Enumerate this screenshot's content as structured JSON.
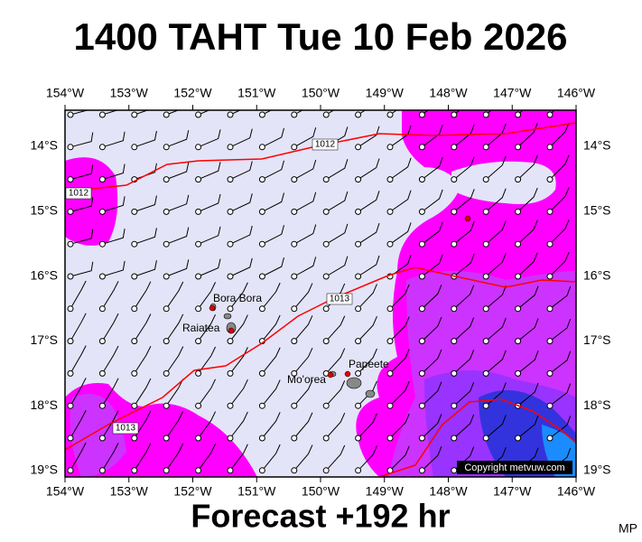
{
  "header": {
    "title": "1400 TAHT Tue 10 Feb 2026"
  },
  "map": {
    "lon_labels": [
      "154°W",
      "153°W",
      "152°W",
      "151°W",
      "150°W",
      "149°W",
      "148°W",
      "147°W",
      "146°W"
    ],
    "lat_labels": [
      "14°S",
      "15°S",
      "16°S",
      "17°S",
      "18°S",
      "19°S"
    ],
    "places": [
      {
        "name": "Bora Bora"
      },
      {
        "name": "Raiatea"
      },
      {
        "name": "Mo'orea"
      },
      {
        "name": "Papeete"
      }
    ],
    "isobar_labels": [
      "1012",
      "1012",
      "1013",
      "1013"
    ],
    "copyright": "Copyright metvuw.com"
  },
  "footer": {
    "caption": "Forecast +192 hr",
    "initials": "MP"
  }
}
